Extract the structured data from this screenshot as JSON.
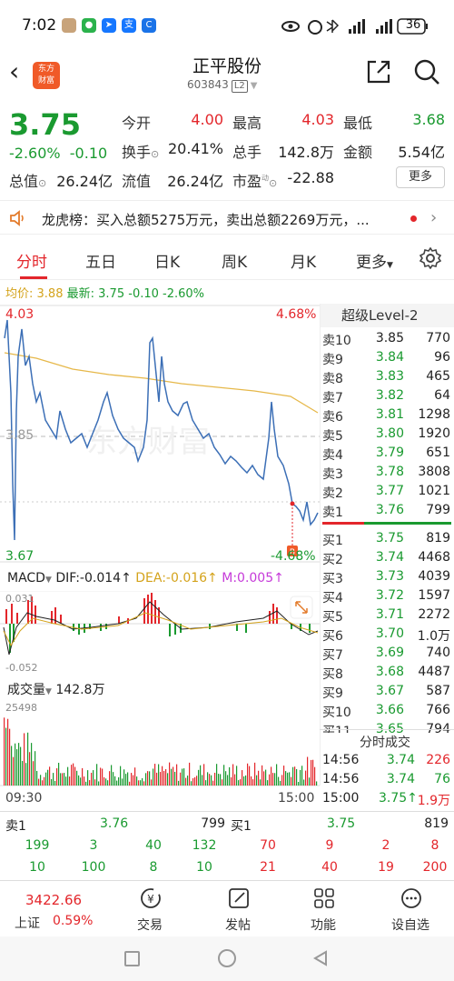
{
  "status_bar": {
    "time": "7:02",
    "battery": "36"
  },
  "header": {
    "logo_text_1": "东方",
    "logo_text_2": "财富",
    "stock_name": "正平股份",
    "stock_code": "603843",
    "level_badge": "L2"
  },
  "quote": {
    "price": "3.75",
    "change_pct": "-2.60%",
    "change_abs": "-0.10",
    "items": [
      {
        "label": "今开",
        "value": "4.00"
      },
      {
        "label": "最高",
        "value": "4.03"
      },
      {
        "label": "最低",
        "value": "3.68"
      },
      {
        "label": "换手",
        "value": "20.41%"
      },
      {
        "label": "总手",
        "value": "142.8万"
      },
      {
        "label": "金额",
        "value": "5.54亿"
      },
      {
        "label": "总值",
        "value": "26.24亿"
      },
      {
        "label": "流值",
        "value": "26.24亿"
      },
      {
        "label": "市盈",
        "value": "-22.88"
      }
    ],
    "more_label": "更多",
    "pe_superscript": "动"
  },
  "dragon_tiger": {
    "text": "龙虎榜：买入总额5275万元，卖出总额2269万元，..."
  },
  "tabs": [
    "分时",
    "五日",
    "日K",
    "周K",
    "月K",
    "更多"
  ],
  "avg_line": {
    "avg_label": "均价:",
    "avg_value": "3.88",
    "latest_label": "最新:",
    "latest_value": "3.75",
    "chg": "-0.10",
    "pct": "-2.60%"
  },
  "intraday": {
    "high_price": "4.03",
    "low_price": "3.67",
    "high_pct": "4.68%",
    "low_pct": "-4.68%",
    "prev_close": "3.85",
    "time_start": "09:30",
    "time_end": "15:00",
    "watermark": "东方财富"
  },
  "macd": {
    "title": "MACD",
    "dif": "DIF:-0.014↑",
    "dea": "DEA:-0.016↑",
    "m": "M:0.005↑",
    "top": "0.031",
    "bottom": "-0.052"
  },
  "volume": {
    "title": "成交量",
    "total": "142.8万",
    "max": "25498"
  },
  "orderbook": {
    "title": "超级Level-2",
    "sells": [
      {
        "label": "卖10",
        "price": "3.85",
        "vol": "770"
      },
      {
        "label": "卖9",
        "price": "3.84",
        "vol": "96"
      },
      {
        "label": "卖8",
        "price": "3.83",
        "vol": "465"
      },
      {
        "label": "卖7",
        "price": "3.82",
        "vol": "64"
      },
      {
        "label": "卖6",
        "price": "3.81",
        "vol": "1298"
      },
      {
        "label": "卖5",
        "price": "3.80",
        "vol": "1920"
      },
      {
        "label": "卖4",
        "price": "3.79",
        "vol": "651"
      },
      {
        "label": "卖3",
        "price": "3.78",
        "vol": "3808"
      },
      {
        "label": "卖2",
        "price": "3.77",
        "vol": "1021"
      },
      {
        "label": "卖1",
        "price": "3.76",
        "vol": "799"
      }
    ],
    "buys": [
      {
        "label": "买1",
        "price": "3.75",
        "vol": "819"
      },
      {
        "label": "买2",
        "price": "3.74",
        "vol": "4468"
      },
      {
        "label": "买3",
        "price": "3.73",
        "vol": "4039"
      },
      {
        "label": "买4",
        "price": "3.72",
        "vol": "1597"
      },
      {
        "label": "买5",
        "price": "3.71",
        "vol": "2272"
      },
      {
        "label": "买6",
        "price": "3.70",
        "vol": "1.0万"
      },
      {
        "label": "买7",
        "price": "3.69",
        "vol": "740"
      },
      {
        "label": "买8",
        "price": "3.68",
        "vol": "4487"
      },
      {
        "label": "买9",
        "price": "3.67",
        "vol": "587"
      },
      {
        "label": "买10",
        "price": "3.66",
        "vol": "766"
      },
      {
        "label": "买11",
        "price": "3.65",
        "vol": "794"
      }
    ]
  },
  "trades": {
    "title": "分时成交",
    "rows": [
      {
        "time": "14:56",
        "price": "3.74",
        "vol": "226"
      },
      {
        "time": "14:56",
        "price": "3.74",
        "vol": "76"
      },
      {
        "time": "15:00",
        "price": "3.75↑",
        "vol": "1.9万"
      }
    ]
  },
  "bottom_table": {
    "sell1_label": "卖1",
    "sell1_price": "3.76",
    "sell1_vol": "799",
    "buy1_label": "买1",
    "buy1_price": "3.75",
    "buy1_vol": "819",
    "row1": [
      "199",
      "3",
      "40",
      "132",
      "70",
      "9",
      "2",
      "8"
    ],
    "row2": [
      "10",
      "100",
      "8",
      "10",
      "21",
      "40",
      "19",
      "200"
    ]
  },
  "bottom_nav": [
    {
      "label": "上证",
      "value": "3422.66",
      "pct": "0.59%"
    },
    {
      "label": "交易"
    },
    {
      "label": "发帖"
    },
    {
      "label": "功能"
    },
    {
      "label": "设自选"
    }
  ]
}
